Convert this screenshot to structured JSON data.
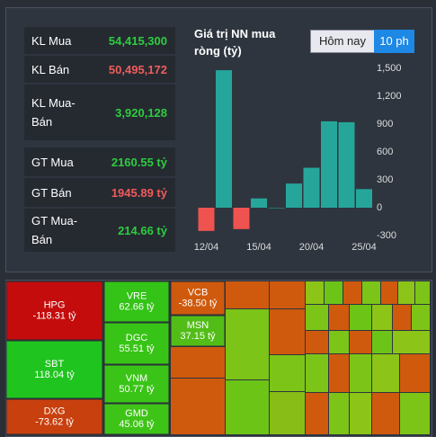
{
  "stats": [
    {
      "label": "KL Mua",
      "value": "54,415,300",
      "tone": "up"
    },
    {
      "label": "KL Bán",
      "value": "50,495,172",
      "tone": "down"
    },
    {
      "label": "KL Mua-Bán",
      "value": "3,920,128",
      "tone": "up"
    },
    {
      "label": "GT Mua",
      "value": "2160.55 tỷ",
      "tone": "up"
    },
    {
      "label": "GT Bán",
      "value": "1945.89 tỷ",
      "tone": "down"
    },
    {
      "label": "GT Mua-Bán",
      "value": "214.66 tỷ",
      "tone": "up"
    }
  ],
  "buttons": [
    "Hôm nay",
    "10 ph"
  ],
  "chart_data": {
    "type": "bar",
    "title": "Giá trị NN mua ròng (tỷ)",
    "categories": [
      "12/04",
      null,
      null,
      "15/04",
      null,
      null,
      "20/04",
      null,
      null,
      "25/04"
    ],
    "values": [
      -250,
      1480,
      -230,
      100,
      0,
      260,
      430,
      930,
      920,
      200
    ],
    "color_positive": "#26a69a",
    "color_negative": "#ef5350",
    "ylim": [
      -300,
      1500
    ],
    "yticks": [
      {
        "value": 1500,
        "label": "1,500"
      },
      {
        "value": 1200,
        "label": "1,200"
      },
      900,
      600,
      300,
      0,
      -300
    ],
    "grid": false
  },
  "treemap": [
    {
      "name": "HPG",
      "value": "-118.31 tỷ",
      "color": "#c40c0c"
    },
    {
      "name": "SBT",
      "value": "118.04 tỷ",
      "color": "#1fc41f"
    },
    {
      "name": "DXG",
      "value": "-73.62 tỷ",
      "color": "#c8400e"
    },
    {
      "name": "VRE",
      "value": "62.66 tỷ",
      "color": "#33c417"
    },
    {
      "name": "DGC",
      "value": "55.51 tỷ",
      "color": "#38c417"
    },
    {
      "name": "VNM",
      "value": "50.77 tỷ",
      "color": "#3ac417"
    },
    {
      "name": "GMD",
      "value": "45.06 tỷ",
      "color": "#3ec417"
    },
    {
      "name": "VCB",
      "value": "-38.50 tỷ",
      "color": "#cf5a0e"
    },
    {
      "name": "MSN",
      "value": "37.15 tỷ",
      "color": "#52bd17"
    }
  ]
}
